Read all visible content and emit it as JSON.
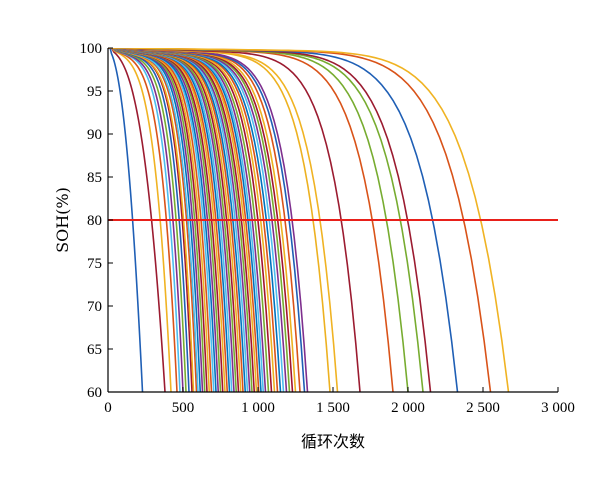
{
  "chart_data": {
    "type": "line",
    "xlabel": "循环次数",
    "ylabel": "SOH(%)",
    "xlim": [
      0,
      3000
    ],
    "ylim": [
      60,
      100
    ],
    "x_ticks": [
      {
        "value": 0,
        "label": "0"
      },
      {
        "value": 500,
        "label": "500"
      },
      {
        "value": 1000,
        "label": "1 000"
      },
      {
        "value": 1500,
        "label": "1 500"
      },
      {
        "value": 2000,
        "label": "2 000"
      },
      {
        "value": 2500,
        "label": "2 500"
      },
      {
        "value": 3000,
        "label": "3 000"
      }
    ],
    "y_ticks": [
      {
        "value": 60,
        "label": "60"
      },
      {
        "value": 65,
        "label": "65"
      },
      {
        "value": 70,
        "label": "70"
      },
      {
        "value": 75,
        "label": "75"
      },
      {
        "value": 80,
        "label": "80"
      },
      {
        "value": 85,
        "label": "85"
      },
      {
        "value": 90,
        "label": "90"
      },
      {
        "value": 95,
        "label": "95"
      },
      {
        "value": 100,
        "label": "100"
      }
    ],
    "grid": false,
    "threshold_line": {
      "y": 80,
      "color": "#e8201a"
    },
    "series": [
      {
        "end_cycle": 230,
        "knee": 0.12,
        "color": "#1f5fb5"
      },
      {
        "end_cycle": 380,
        "knee": 0.18,
        "color": "#9b1b30"
      },
      {
        "end_cycle": 420,
        "knee": 0.3,
        "color": "#f0b323"
      },
      {
        "end_cycle": 460,
        "knee": 0.35,
        "color": "#d95319"
      },
      {
        "end_cycle": 480,
        "knee": 0.4,
        "color": "#4dbeee"
      },
      {
        "end_cycle": 500,
        "knee": 0.42,
        "color": "#7e2f8e"
      },
      {
        "end_cycle": 520,
        "knee": 0.45,
        "color": "#77ac30"
      },
      {
        "end_cycle": 540,
        "knee": 0.48,
        "color": "#1f5fb5"
      },
      {
        "end_cycle": 560,
        "knee": 0.5,
        "color": "#a2142f"
      },
      {
        "end_cycle": 570,
        "knee": 0.5,
        "color": "#edb120"
      },
      {
        "end_cycle": 590,
        "knee": 0.52,
        "color": "#d95319"
      },
      {
        "end_cycle": 600,
        "knee": 0.53,
        "color": "#4dbeee"
      },
      {
        "end_cycle": 615,
        "knee": 0.55,
        "color": "#0072bd"
      },
      {
        "end_cycle": 630,
        "knee": 0.56,
        "color": "#7e2f8e"
      },
      {
        "end_cycle": 645,
        "knee": 0.57,
        "color": "#77ac30"
      },
      {
        "end_cycle": 660,
        "knee": 0.58,
        "color": "#a2142f"
      },
      {
        "end_cycle": 675,
        "knee": 0.58,
        "color": "#edb120"
      },
      {
        "end_cycle": 690,
        "knee": 0.59,
        "color": "#d95319"
      },
      {
        "end_cycle": 705,
        "knee": 0.6,
        "color": "#4dbeee"
      },
      {
        "end_cycle": 720,
        "knee": 0.6,
        "color": "#0072bd"
      },
      {
        "end_cycle": 735,
        "knee": 0.61,
        "color": "#7e2f8e"
      },
      {
        "end_cycle": 750,
        "knee": 0.62,
        "color": "#77ac30"
      },
      {
        "end_cycle": 765,
        "knee": 0.62,
        "color": "#a2142f"
      },
      {
        "end_cycle": 780,
        "knee": 0.63,
        "color": "#edb120"
      },
      {
        "end_cycle": 795,
        "knee": 0.63,
        "color": "#d95319"
      },
      {
        "end_cycle": 810,
        "knee": 0.64,
        "color": "#0072bd"
      },
      {
        "end_cycle": 825,
        "knee": 0.64,
        "color": "#4dbeee"
      },
      {
        "end_cycle": 840,
        "knee": 0.65,
        "color": "#7e2f8e"
      },
      {
        "end_cycle": 855,
        "knee": 0.65,
        "color": "#77ac30"
      },
      {
        "end_cycle": 870,
        "knee": 0.66,
        "color": "#a2142f"
      },
      {
        "end_cycle": 885,
        "knee": 0.66,
        "color": "#edb120"
      },
      {
        "end_cycle": 900,
        "knee": 0.67,
        "color": "#d95319"
      },
      {
        "end_cycle": 915,
        "knee": 0.67,
        "color": "#0072bd"
      },
      {
        "end_cycle": 930,
        "knee": 0.68,
        "color": "#4dbeee"
      },
      {
        "end_cycle": 945,
        "knee": 0.68,
        "color": "#7e2f8e"
      },
      {
        "end_cycle": 960,
        "knee": 0.69,
        "color": "#77ac30"
      },
      {
        "end_cycle": 975,
        "knee": 0.69,
        "color": "#a2142f"
      },
      {
        "end_cycle": 990,
        "knee": 0.7,
        "color": "#edb120"
      },
      {
        "end_cycle": 1005,
        "knee": 0.7,
        "color": "#d95319"
      },
      {
        "end_cycle": 1020,
        "knee": 0.71,
        "color": "#0072bd"
      },
      {
        "end_cycle": 1035,
        "knee": 0.71,
        "color": "#4dbeee"
      },
      {
        "end_cycle": 1050,
        "knee": 0.72,
        "color": "#7e2f8e"
      },
      {
        "end_cycle": 1070,
        "knee": 0.72,
        "color": "#77ac30"
      },
      {
        "end_cycle": 1090,
        "knee": 0.73,
        "color": "#a2142f"
      },
      {
        "end_cycle": 1110,
        "knee": 0.73,
        "color": "#edb120"
      },
      {
        "end_cycle": 1130,
        "knee": 0.74,
        "color": "#d95319"
      },
      {
        "end_cycle": 1150,
        "knee": 0.74,
        "color": "#0072bd"
      },
      {
        "end_cycle": 1170,
        "knee": 0.75,
        "color": "#4dbeee"
      },
      {
        "end_cycle": 1190,
        "knee": 0.75,
        "color": "#7e2f8e"
      },
      {
        "end_cycle": 1210,
        "knee": 0.76,
        "color": "#77ac30"
      },
      {
        "end_cycle": 1230,
        "knee": 0.76,
        "color": "#a2142f"
      },
      {
        "end_cycle": 1250,
        "knee": 0.77,
        "color": "#edb120"
      },
      {
        "end_cycle": 1280,
        "knee": 0.78,
        "color": "#d95319"
      },
      {
        "end_cycle": 1310,
        "knee": 0.78,
        "color": "#1f5fb5"
      },
      {
        "end_cycle": 1330,
        "knee": 0.79,
        "color": "#7e2f8e"
      },
      {
        "end_cycle": 1480,
        "knee": 0.8,
        "color": "#edb120"
      },
      {
        "end_cycle": 1530,
        "knee": 0.8,
        "color": "#f0b323"
      },
      {
        "end_cycle": 1680,
        "knee": 0.82,
        "color": "#9b1b30"
      },
      {
        "end_cycle": 1900,
        "knee": 0.84,
        "color": "#d95319"
      },
      {
        "end_cycle": 2000,
        "knee": 0.85,
        "color": "#77ac30"
      },
      {
        "end_cycle": 2100,
        "knee": 0.85,
        "color": "#77ac30"
      },
      {
        "end_cycle": 2150,
        "knee": 0.86,
        "color": "#9b1b30"
      },
      {
        "end_cycle": 2330,
        "knee": 0.86,
        "color": "#1f5fb5"
      },
      {
        "end_cycle": 2550,
        "knee": 0.87,
        "color": "#d95319"
      },
      {
        "end_cycle": 2670,
        "knee": 0.88,
        "color": "#f0b323"
      }
    ]
  }
}
